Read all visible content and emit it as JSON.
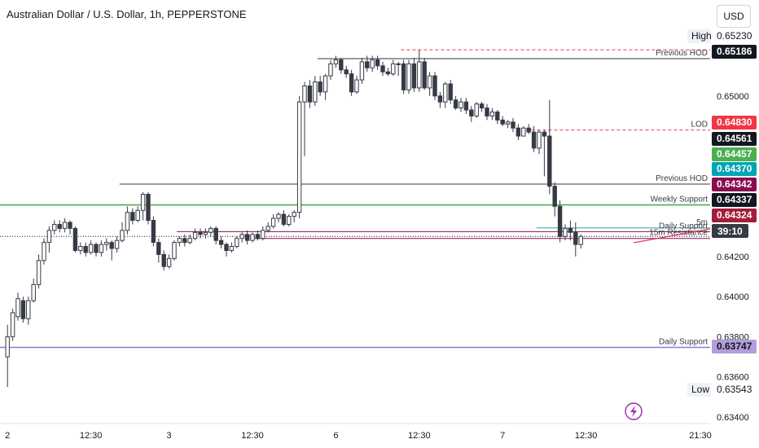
{
  "header": {
    "title": "Australian Dollar / U.S. Dollar, 1h, PEPPERSTONE",
    "currency": "USD",
    "countdown": "39:10"
  },
  "colors": {
    "up": "#ffffff",
    "down": "#363a45",
    "outline": "#363a45",
    "support_green": "#4caf50",
    "support_purple": "#9575cd",
    "resistance_red": "#e53950",
    "cyan": "#26a69a",
    "dashed_red": "#e53950"
  },
  "chart_data": {
    "type": "candlestick",
    "symbol": "AUD/USD",
    "ylim": [
      0.634,
      0.6534
    ],
    "yticks": [
      "0.63400",
      "0.63600",
      "0.63800",
      "0.64000",
      "0.64200",
      "0.65000"
    ],
    "xticks": [
      {
        "i": 0,
        "label": "2"
      },
      {
        "i": 16,
        "label": "12:30"
      },
      {
        "i": 31,
        "label": "3"
      },
      {
        "i": 47,
        "label": "12:30"
      },
      {
        "i": 63,
        "label": "6"
      },
      {
        "i": 79,
        "label": "12:30"
      },
      {
        "i": 95,
        "label": "7"
      },
      {
        "i": 111,
        "label": "12:30"
      },
      {
        "i": 117,
        "label": "21:30"
      }
    ],
    "candles": [
      [
        0.637,
        0.638,
        0.6355,
        0.6386
      ],
      [
        0.638,
        0.6392,
        0.6378,
        0.6394
      ],
      [
        0.639,
        0.6399,
        0.6388,
        0.6402
      ],
      [
        0.6398,
        0.6389,
        0.6387,
        0.64
      ],
      [
        0.6389,
        0.6398,
        0.6386,
        0.64
      ],
      [
        0.6398,
        0.6406,
        0.6397,
        0.6409
      ],
      [
        0.6406,
        0.6418,
        0.6404,
        0.6421
      ],
      [
        0.6418,
        0.6427,
        0.6416,
        0.6429
      ],
      [
        0.6427,
        0.6433,
        0.6422,
        0.6435
      ],
      [
        0.6433,
        0.6436,
        0.6431,
        0.6438
      ],
      [
        0.6436,
        0.6434,
        0.6432,
        0.6438
      ],
      [
        0.6434,
        0.6437,
        0.6432,
        0.6439
      ],
      [
        0.6437,
        0.6434,
        0.6431,
        0.6438
      ],
      [
        0.6434,
        0.6423,
        0.6422,
        0.6435
      ],
      [
        0.6423,
        0.6425,
        0.6421,
        0.6427
      ],
      [
        0.6425,
        0.6422,
        0.642,
        0.6427
      ],
      [
        0.6422,
        0.6426,
        0.6421,
        0.6428
      ],
      [
        0.6426,
        0.6422,
        0.642,
        0.6427
      ],
      [
        0.6422,
        0.6426,
        0.642,
        0.6428
      ],
      [
        0.6426,
        0.6427,
        0.6423,
        0.6429
      ],
      [
        0.6427,
        0.6424,
        0.6418,
        0.6428
      ],
      [
        0.6424,
        0.6428,
        0.6422,
        0.643
      ],
      [
        0.6428,
        0.6433,
        0.6427,
        0.6437
      ],
      [
        0.6433,
        0.6442,
        0.6431,
        0.6445
      ],
      [
        0.6442,
        0.6438,
        0.6436,
        0.6444
      ],
      [
        0.6438,
        0.6443,
        0.6437,
        0.6445
      ],
      [
        0.6443,
        0.6451,
        0.6438,
        0.6452
      ],
      [
        0.6451,
        0.6438,
        0.6436,
        0.6452
      ],
      [
        0.6438,
        0.6427,
        0.6425,
        0.644
      ],
      [
        0.6427,
        0.6421,
        0.6417,
        0.6429
      ],
      [
        0.6421,
        0.6415,
        0.6413,
        0.6423
      ],
      [
        0.6415,
        0.6419,
        0.6414,
        0.6421
      ],
      [
        0.6419,
        0.6427,
        0.6418,
        0.6428
      ],
      [
        0.6427,
        0.6429,
        0.6425,
        0.643
      ],
      [
        0.6429,
        0.6427,
        0.6425,
        0.6431
      ],
      [
        0.6427,
        0.6429,
        0.6426,
        0.6431
      ],
      [
        0.6429,
        0.6432,
        0.6428,
        0.6434
      ],
      [
        0.6432,
        0.6431,
        0.6429,
        0.6434
      ],
      [
        0.6431,
        0.6432,
        0.6429,
        0.6434
      ],
      [
        0.6432,
        0.6434,
        0.643,
        0.6435
      ],
      [
        0.6434,
        0.6428,
        0.6426,
        0.6435
      ],
      [
        0.6428,
        0.6426,
        0.6424,
        0.643
      ],
      [
        0.6426,
        0.6423,
        0.642,
        0.6427
      ],
      [
        0.6423,
        0.6425,
        0.6422,
        0.6427
      ],
      [
        0.6425,
        0.6429,
        0.6424,
        0.643
      ],
      [
        0.6429,
        0.6431,
        0.6427,
        0.6432
      ],
      [
        0.6431,
        0.6428,
        0.6426,
        0.6433
      ],
      [
        0.6428,
        0.6431,
        0.6427,
        0.6432
      ],
      [
        0.6431,
        0.6429,
        0.6428,
        0.6433
      ],
      [
        0.6429,
        0.6433,
        0.6428,
        0.6435
      ],
      [
        0.6433,
        0.6435,
        0.6432,
        0.6437
      ],
      [
        0.6435,
        0.6439,
        0.6434,
        0.6441
      ],
      [
        0.6439,
        0.6441,
        0.6437,
        0.6442
      ],
      [
        0.6441,
        0.6436,
        0.6435,
        0.6443
      ],
      [
        0.6436,
        0.644,
        0.6435,
        0.6441
      ],
      [
        0.644,
        0.6442,
        0.6437,
        0.6443
      ],
      [
        0.6442,
        0.6497,
        0.6439,
        0.65
      ],
      [
        0.6497,
        0.6505,
        0.647,
        0.6507
      ],
      [
        0.6505,
        0.6497,
        0.6494,
        0.6508
      ],
      [
        0.6497,
        0.6507,
        0.6495,
        0.651
      ],
      [
        0.6507,
        0.6502,
        0.65,
        0.651
      ],
      [
        0.6502,
        0.651,
        0.6498,
        0.6511
      ],
      [
        0.651,
        0.6516,
        0.6508,
        0.6518
      ],
      [
        0.6516,
        0.6518,
        0.6514,
        0.652
      ],
      [
        0.6518,
        0.6513,
        0.6511,
        0.6519
      ],
      [
        0.6513,
        0.6511,
        0.6509,
        0.6515
      ],
      [
        0.6511,
        0.6502,
        0.65,
        0.6513
      ],
      [
        0.6502,
        0.6508,
        0.6501,
        0.651
      ],
      [
        0.6508,
        0.6517,
        0.6506,
        0.6519
      ],
      [
        0.6517,
        0.6514,
        0.6512,
        0.652
      ],
      [
        0.6514,
        0.6518,
        0.6512,
        0.652
      ],
      [
        0.6518,
        0.6515,
        0.6513,
        0.652
      ],
      [
        0.6515,
        0.6512,
        0.651,
        0.6517
      ],
      [
        0.6512,
        0.6511,
        0.651,
        0.6514
      ],
      [
        0.6511,
        0.6516,
        0.651,
        0.6518
      ],
      [
        0.6516,
        0.6516,
        0.651,
        0.6517
      ],
      [
        0.6516,
        0.6503,
        0.6501,
        0.6518
      ],
      [
        0.6503,
        0.6516,
        0.6501,
        0.6518
      ],
      [
        0.6516,
        0.6504,
        0.6502,
        0.6519
      ],
      [
        0.6504,
        0.6517,
        0.6502,
        0.6523
      ],
      [
        0.6517,
        0.6504,
        0.6503,
        0.6519
      ],
      [
        0.6504,
        0.651,
        0.65,
        0.6512
      ],
      [
        0.651,
        0.65,
        0.6498,
        0.6512
      ],
      [
        0.65,
        0.6497,
        0.6494,
        0.6502
      ],
      [
        0.6497,
        0.6506,
        0.6494,
        0.6507
      ],
      [
        0.6506,
        0.6498,
        0.6496,
        0.6508
      ],
      [
        0.6498,
        0.6494,
        0.6493,
        0.65
      ],
      [
        0.6494,
        0.6497,
        0.6492,
        0.6499
      ],
      [
        0.6497,
        0.6493,
        0.6491,
        0.6499
      ],
      [
        0.6493,
        0.649,
        0.6487,
        0.6495
      ],
      [
        0.649,
        0.6496,
        0.6489,
        0.6497
      ],
      [
        0.6496,
        0.6494,
        0.6492,
        0.6497
      ],
      [
        0.6494,
        0.649,
        0.6488,
        0.6496
      ],
      [
        0.649,
        0.6492,
        0.6488,
        0.6494
      ],
      [
        0.6492,
        0.6488,
        0.6486,
        0.6493
      ],
      [
        0.6488,
        0.6486,
        0.6485,
        0.649
      ],
      [
        0.6486,
        0.6487,
        0.6484,
        0.6488
      ],
      [
        0.6487,
        0.6484,
        0.6482,
        0.6489
      ],
      [
        0.6484,
        0.648,
        0.6478,
        0.6486
      ],
      [
        0.648,
        0.6484,
        0.648,
        0.6485
      ],
      [
        0.6484,
        0.6482,
        0.6481,
        0.6486
      ],
      [
        0.6482,
        0.6474,
        0.6472,
        0.6485
      ],
      [
        0.6474,
        0.6482,
        0.6471,
        0.6483
      ],
      [
        0.6482,
        0.648,
        0.646,
        0.6483
      ],
      [
        0.648,
        0.6455,
        0.6451,
        0.6498
      ],
      [
        0.6455,
        0.6445,
        0.644,
        0.6457
      ],
      [
        0.6445,
        0.643,
        0.6427,
        0.6448
      ],
      [
        0.643,
        0.6434,
        0.6428,
        0.6436
      ],
      [
        0.6434,
        0.6432,
        0.6428,
        0.6438
      ],
      [
        0.6432,
        0.6426,
        0.642,
        0.6437
      ],
      [
        0.6426,
        0.643,
        0.6424,
        0.6431
      ]
    ],
    "levels": [
      {
        "price": 0.6523,
        "style": "dashed",
        "color": "#e53950",
        "x0": 76,
        "label": "",
        "tag": "High"
      },
      {
        "price": 0.65186,
        "style": "solid",
        "color": "#363a45",
        "x0": 60,
        "label": "Previous HOD"
      },
      {
        "price": 0.6483,
        "style": "dashed",
        "color": "#e53950",
        "x0": 101,
        "label": "LOD"
      },
      {
        "price": 0.64561,
        "style": "solid",
        "color": "#363a45",
        "x0": 22,
        "label": "Previous HOD"
      },
      {
        "price": 0.64457,
        "style": "solid",
        "color": "#4caf50",
        "x0": -1,
        "label": "Weekly Support"
      },
      {
        "price": 0.64342,
        "style": "solid",
        "color": "#26a69a",
        "x0": 102,
        "label": "5m"
      },
      {
        "price": 0.64324,
        "style": "solid",
        "color": "#880e4f",
        "x0": 33,
        "label": "Daily Support"
      },
      {
        "price": 0.6429,
        "style": "solid",
        "color": "#880e4f",
        "x0": 47,
        "label": "15m Resistance"
      },
      {
        "price": 0.63747,
        "style": "solid",
        "color": "#9575cd",
        "x0": -1,
        "label": "Daily Support"
      }
    ],
    "price_tags": [
      {
        "label": "High",
        "value": "0.65230",
        "bg": "#ffffff",
        "fg": "#131722",
        "labelbg": "#eef1f6"
      },
      {
        "value": "0.65186",
        "bg": "#131722",
        "fg": "#ffffff"
      },
      {
        "value": "0.64830",
        "bg": "#f23645",
        "fg": "#ffffff"
      },
      {
        "value": "0.64561",
        "bg": "#131722",
        "fg": "#ffffff"
      },
      {
        "value": "0.64457",
        "bg": "#4caf50",
        "fg": "#ffffff"
      },
      {
        "value": "0.64370",
        "bg": "#00a5b4",
        "fg": "#ffffff"
      },
      {
        "value": "0.64342",
        "bg": "#880e4f",
        "fg": "#ffffff"
      },
      {
        "value": "0.64337",
        "bg": "#131722",
        "fg": "#ffffff"
      },
      {
        "value": "0.64324",
        "bg": "#a31d3a",
        "fg": "#ffffff"
      },
      {
        "value": "0.63747",
        "bg": "#b39ddb",
        "fg": "#131722"
      },
      {
        "label": "Low",
        "value": "0.63543",
        "bg": "#ffffff",
        "fg": "#131722",
        "labelbg": "#eef1f6"
      }
    ],
    "current_price": 0.643
  }
}
